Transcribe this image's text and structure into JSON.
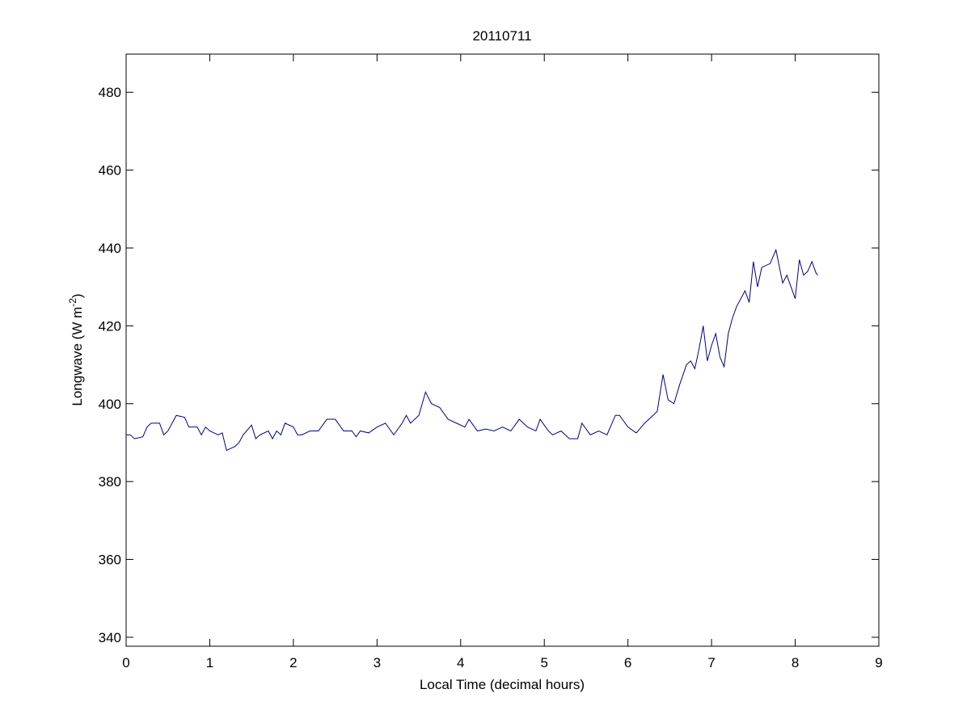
{
  "chart_data": {
    "type": "line",
    "title": "20110711",
    "xlabel": "Local Time (decimal hours)",
    "ylabel": [
      "Longwave (W m",
      "-2",
      ")"
    ],
    "color": "#00008b",
    "x": [
      0,
      0.05,
      0.1,
      0.2,
      0.25,
      0.3,
      0.4,
      0.45,
      0.5,
      0.6,
      0.7,
      0.75,
      0.85,
      0.9,
      0.95,
      1.0,
      1.1,
      1.15,
      1.2,
      1.3,
      1.35,
      1.4,
      1.5,
      1.55,
      1.6,
      1.7,
      1.75,
      1.8,
      1.85,
      1.9,
      2.0,
      2.05,
      2.1,
      2.2,
      2.3,
      2.4,
      2.5,
      2.6,
      2.7,
      2.75,
      2.8,
      2.9,
      3.0,
      3.1,
      3.2,
      3.3,
      3.35,
      3.4,
      3.5,
      3.58,
      3.65,
      3.75,
      3.85,
      3.95,
      4.05,
      4.1,
      4.2,
      4.3,
      4.4,
      4.5,
      4.6,
      4.7,
      4.8,
      4.9,
      4.95,
      5.05,
      5.1,
      5.2,
      5.3,
      5.4,
      5.45,
      5.55,
      5.65,
      5.75,
      5.85,
      5.9,
      6.0,
      6.1,
      6.2,
      6.3,
      6.35,
      6.42,
      6.48,
      6.55,
      6.62,
      6.7,
      6.75,
      6.8,
      6.85,
      6.9,
      6.95,
      7.0,
      7.05,
      7.1,
      7.15,
      7.2,
      7.25,
      7.3,
      7.4,
      7.45,
      7.5,
      7.55,
      7.6,
      7.7,
      7.77,
      7.85,
      7.9,
      7.95,
      8.0,
      8.05,
      8.1,
      8.15,
      8.2,
      8.25,
      8.27
    ],
    "values": [
      392,
      392,
      391,
      391.5,
      394,
      395,
      395,
      392,
      393,
      397,
      396.5,
      394,
      394,
      392,
      394,
      393,
      392,
      392.5,
      388,
      389,
      390,
      392,
      394.5,
      391,
      392,
      393,
      391,
      393,
      392,
      395,
      394,
      392,
      392,
      393,
      393,
      396,
      396,
      393,
      393,
      391.5,
      393,
      392.5,
      394,
      395,
      392,
      395,
      397,
      395,
      397,
      403,
      400,
      399,
      396,
      395,
      394,
      396,
      393,
      393.5,
      393,
      394,
      393,
      396,
      394,
      393,
      396,
      393,
      392,
      393,
      391,
      391,
      395,
      392,
      393,
      392,
      397,
      397,
      394,
      392.5,
      395,
      397,
      398,
      407.5,
      401,
      400,
      405,
      410,
      411,
      409,
      414,
      420,
      411,
      415,
      418,
      412,
      409.5,
      418,
      422,
      425,
      429,
      426,
      436.5,
      430,
      435,
      436,
      439.5,
      431,
      433,
      430,
      427,
      437,
      433,
      434,
      436.5,
      433.5,
      433
    ],
    "xlim": [
      0,
      9
    ],
    "xticks": [
      0,
      1,
      2,
      3,
      4,
      5,
      6,
      7,
      8,
      9
    ],
    "ylim": [
      337.7,
      489.8
    ],
    "yticks": [
      340,
      360,
      380,
      400,
      420,
      440,
      460,
      480
    ],
    "grid": false
  }
}
